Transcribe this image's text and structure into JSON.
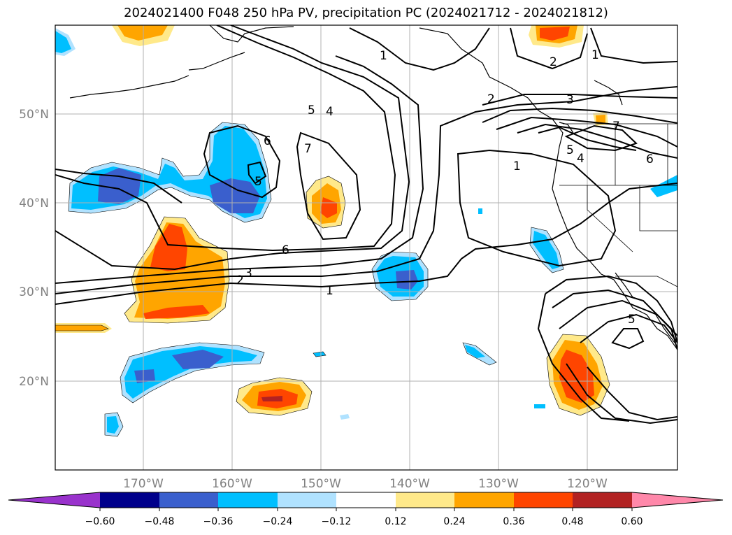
{
  "title": "2024021400 F048 250 hPa PV, precipitation PC (2024021712 - 2024021812)",
  "map": {
    "lat_labels": [
      {
        "text": "50°N",
        "lat": 50
      },
      {
        "text": "40°N",
        "lat": 40
      },
      {
        "text": "30°N",
        "lat": 30
      },
      {
        "text": "20°N",
        "lat": 20
      }
    ],
    "lon_labels": [
      {
        "text": "170°W",
        "lon": -170
      },
      {
        "text": "160°W",
        "lon": -160
      },
      {
        "text": "150°W",
        "lon": -150
      },
      {
        "text": "140°W",
        "lon": -140
      },
      {
        "text": "130°W",
        "lon": -130
      },
      {
        "text": "120°W",
        "lon": -120
      }
    ],
    "extent": {
      "lon_min": -180,
      "lon_max": -110,
      "lat_min": 10,
      "lat_max": 60
    },
    "contour_labels": [
      "1",
      "2",
      "3",
      "4",
      "5",
      "6",
      "7"
    ]
  },
  "colorbar": {
    "ticks": [
      "−0.60",
      "−0.48",
      "−0.36",
      "−0.24",
      "−0.12",
      "0.12",
      "0.24",
      "0.36",
      "0.48",
      "0.60"
    ],
    "colors": [
      "#9932cc",
      "#00008b",
      "#3a5fcd",
      "#00bfff",
      "#b0e2ff",
      "#ffffff",
      "#ffe98a",
      "#ffa500",
      "#ff4500",
      "#b22222",
      "#ff88aa"
    ]
  }
}
